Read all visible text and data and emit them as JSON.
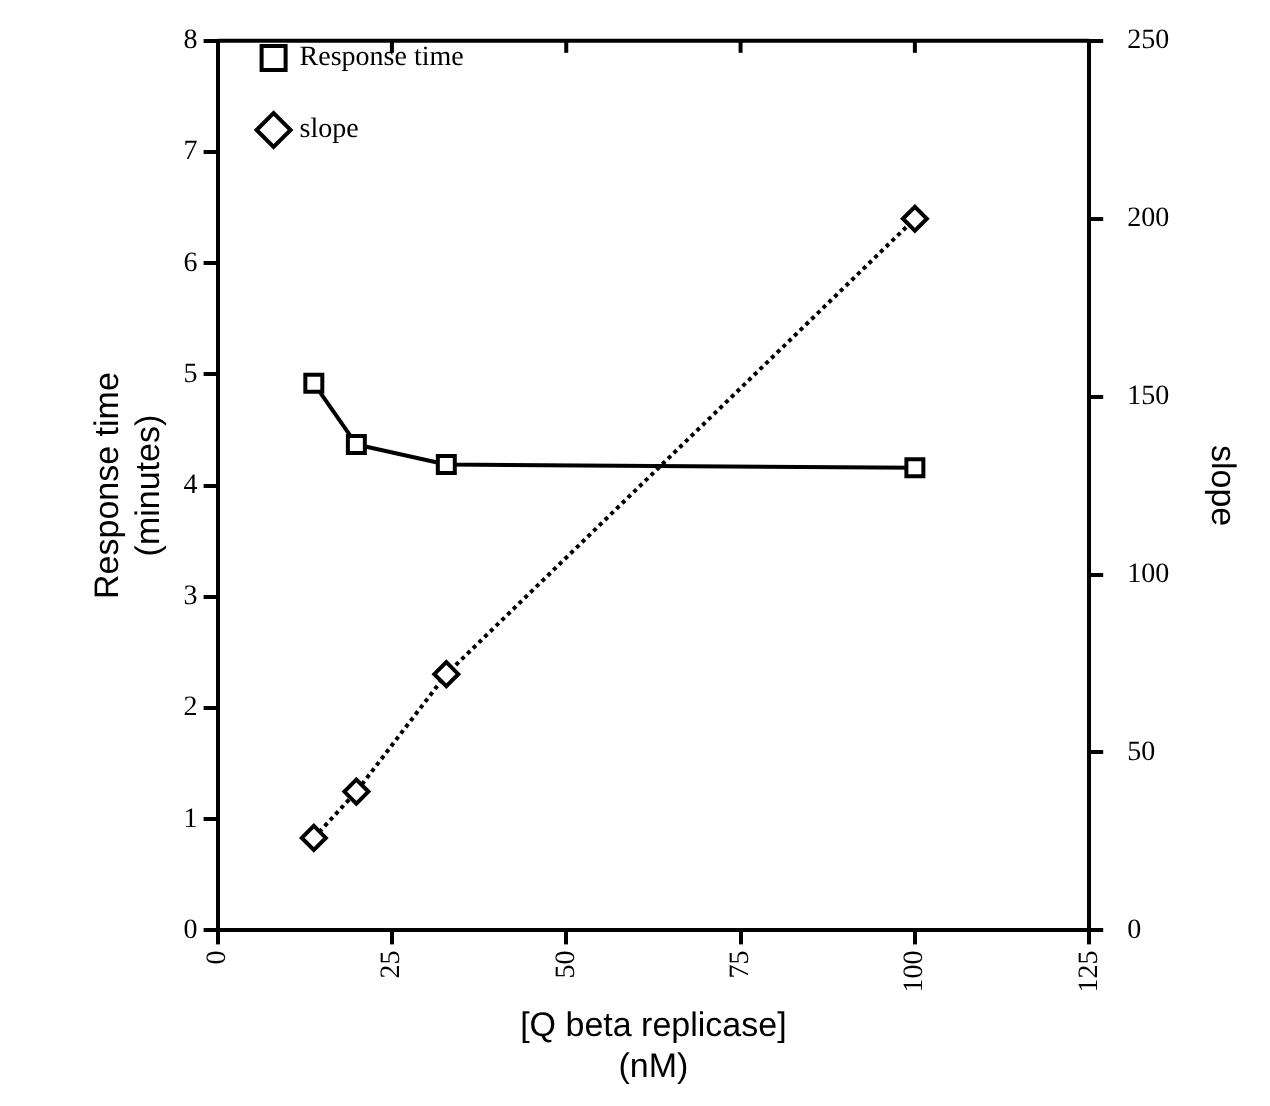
{
  "chart_data": {
    "type": "line",
    "xlabel": "[Q beta replicase]\n(nM)",
    "ylabel": "Response time\n(minutes)",
    "y2label": "slope",
    "x": [
      13.8,
      19.9,
      32.8,
      100
    ],
    "series": [
      {
        "name": "Response time",
        "color": "#000000",
        "values": [
          4.92,
          4.37,
          4.19,
          4.16
        ],
        "marker": "square",
        "line_style": "solid"
      },
      {
        "name": "slope",
        "color": "#000000",
        "values": [
          26,
          39,
          72,
          200
        ],
        "marker": "diamond",
        "line_style": "dotted",
        "axis": "y2"
      }
    ],
    "xlim": [
      0,
      125
    ],
    "xticks": [
      0,
      25,
      50,
      75,
      100,
      125
    ],
    "ylim": [
      0,
      8
    ],
    "yticks": [
      0,
      1,
      2,
      3,
      4,
      5,
      6,
      7,
      8
    ],
    "y2lim": [
      0,
      250
    ],
    "y2ticks": [
      0,
      50,
      100,
      150,
      200,
      250
    ],
    "grid": false,
    "legend": "top left"
  }
}
